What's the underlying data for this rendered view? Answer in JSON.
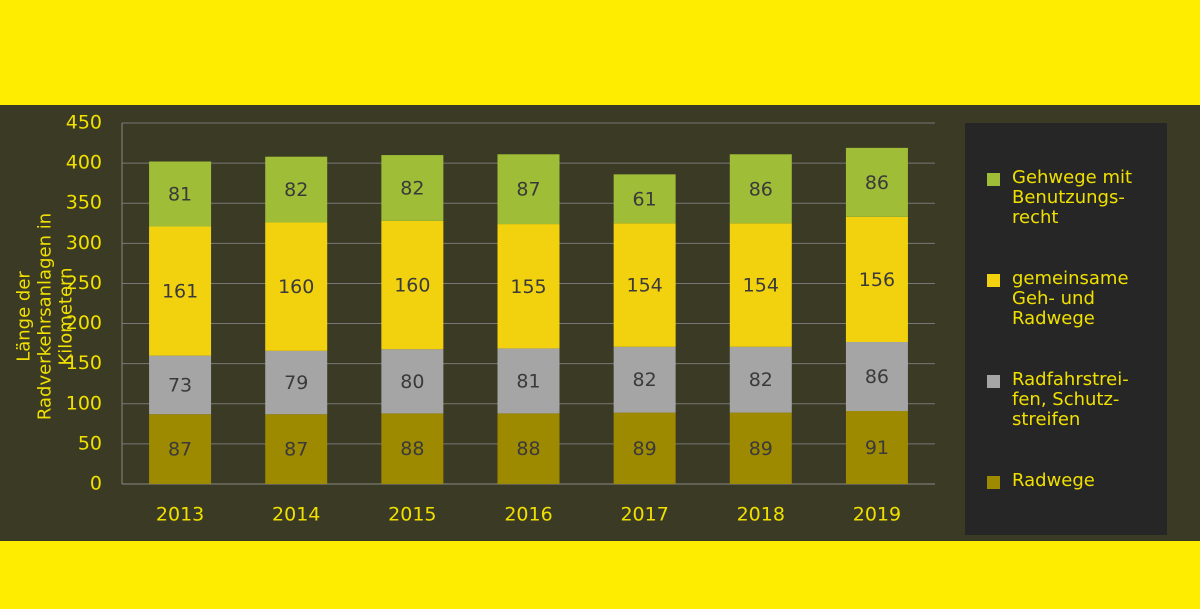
{
  "chart_data": {
    "type": "stacked_bar",
    "y_label": "Länge der Radverkehrsanlagen in Kilometern",
    "categories": [
      "2013",
      "2014",
      "2015",
      "2016",
      "2017",
      "2018",
      "2019"
    ],
    "series": [
      {
        "name": "Radwege",
        "color": "#9e8a00",
        "values": [
          87,
          87,
          88,
          88,
          89,
          89,
          91
        ]
      },
      {
        "name": "Radfahrstrei­fen, Schutz­streifen",
        "color": "#a5a5a5",
        "values": [
          73,
          79,
          80,
          81,
          82,
          82,
          86
        ]
      },
      {
        "name": "gemeinsame Geh- und Radwege",
        "color": "#f2d20f",
        "values": [
          161,
          160,
          160,
          155,
          154,
          154,
          156
        ]
      },
      {
        "name": "Gehwege mit Benutzungs­recht",
        "color": "#9fbd36",
        "values": [
          81,
          82,
          82,
          87,
          61,
          86,
          86
        ]
      }
    ],
    "ylim": [
      0,
      450
    ],
    "yticks": [
      0,
      50,
      100,
      150,
      200,
      250,
      300,
      350,
      400,
      450
    ],
    "grid": true
  }
}
